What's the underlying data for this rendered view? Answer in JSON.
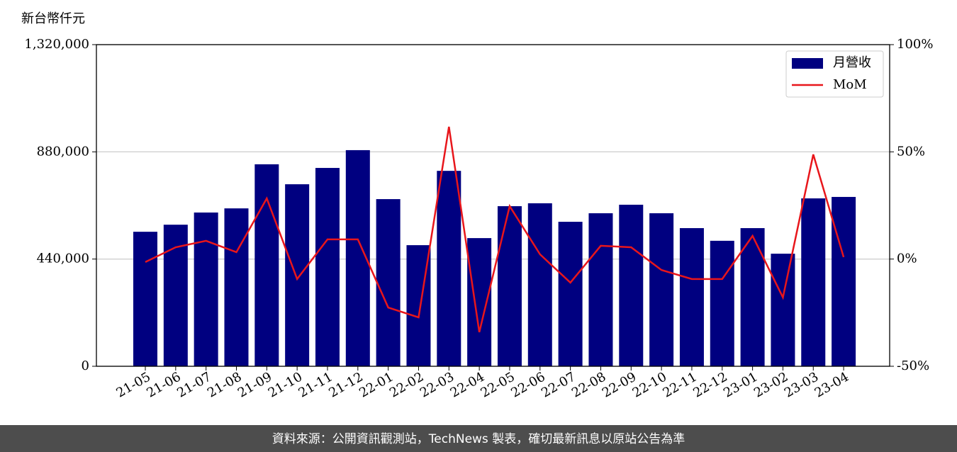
{
  "chart_data": {
    "type": "bar",
    "y_label": "新台幣仟元",
    "categories": [
      "21-05",
      "21-06",
      "21-07",
      "21-08",
      "21-09",
      "21-10",
      "21-11",
      "21-12",
      "22-01",
      "22-02",
      "22-03",
      "22-04",
      "22-05",
      "22-06",
      "22-07",
      "22-08",
      "22-09",
      "22-10",
      "22-11",
      "22-12",
      "23-01",
      "23-02",
      "23-03",
      "23-04"
    ],
    "series": [
      {
        "name": "月營收",
        "type": "bar",
        "color": "#000080",
        "values": [
          552000,
          581000,
          631000,
          648000,
          829000,
          747000,
          814000,
          887000,
          686000,
          497000,
          802000,
          526000,
          657000,
          669000,
          593000,
          628000,
          663000,
          628000,
          567000,
          515000,
          567000,
          462000,
          689000,
          695000
        ]
      },
      {
        "name": "MoM",
        "type": "line",
        "axis": "y2",
        "color": "#e8161b",
        "values": [
          -1.4,
          5.5,
          8.5,
          3.2,
          28.3,
          -9.3,
          9.2,
          9.2,
          -22.6,
          -27.2,
          61.7,
          -34.1,
          24.7,
          2.2,
          -11.0,
          6.2,
          5.5,
          -5.1,
          -9.3,
          -9.3,
          10.8,
          -17.9,
          48.8,
          0.9
        ]
      }
    ],
    "ylim": [
      0,
      1320000
    ],
    "yticks": [
      0,
      {
        "value": 440000,
        "label": "440,000"
      },
      {
        "value": 880000,
        "label": "880,000"
      },
      {
        "value": 1320000,
        "label": "1,320,000"
      }
    ],
    "y2lim": [
      -50,
      100
    ],
    "y2ticks": [
      {
        "value": -50,
        "label": "-50%"
      },
      {
        "value": 0,
        "label": "0%"
      },
      {
        "value": 50,
        "label": "50%"
      },
      {
        "value": 100,
        "label": "100%"
      }
    ],
    "grid": true,
    "legend": "upper right"
  },
  "footer": "資料來源：公開資訊觀測站，TechNews 製表，確切最新訊息以原站公告為準"
}
